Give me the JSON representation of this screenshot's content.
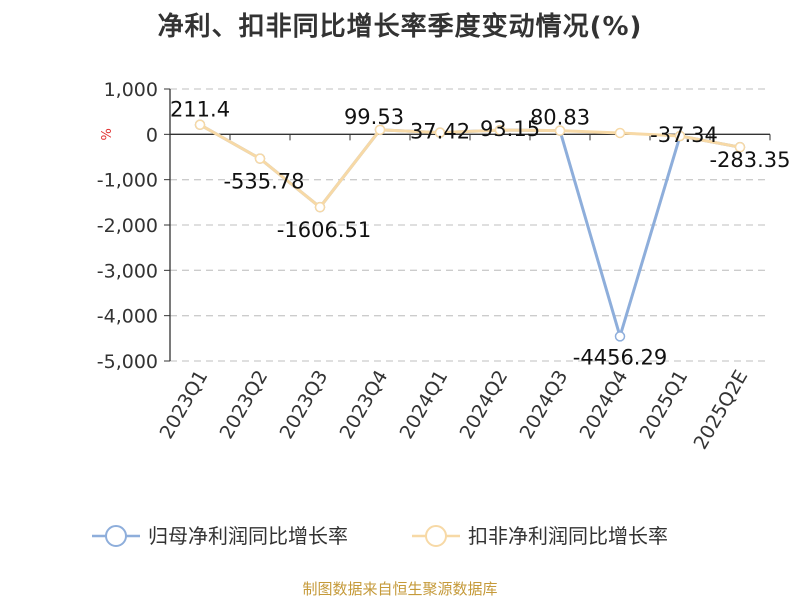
{
  "title": "净利、扣非同比增长率季度变动情况(%)",
  "source": "制图数据来自恒生聚源数据库",
  "colors": {
    "series1": "#8eaedb",
    "series2": "#f7d9a6",
    "axis": "#333333",
    "grid": "#cccccc",
    "unit": "#e03030"
  },
  "chart_data": {
    "type": "line",
    "categories": [
      "2023Q1",
      "2023Q2",
      "2023Q3",
      "2023Q4",
      "2024Q1",
      "2024Q2",
      "2024Q3",
      "2024Q4",
      "2025Q1",
      "2025Q2E"
    ],
    "ylim": [
      -5000,
      1000
    ],
    "yticks": [
      1000,
      0,
      -1000,
      -2000,
      -3000,
      -4000,
      -5000
    ],
    "ytick_labels": [
      "1,000",
      "0",
      "-1,000",
      "-2,000",
      "-3,000",
      "-4,000",
      "-5,000"
    ],
    "ylabel": "%",
    "grid": true,
    "legend_position": "bottom",
    "series": [
      {
        "name": "归母净利润同比增长率",
        "values": [
          211.4,
          -535.78,
          -1606.51,
          99.53,
          37.42,
          93.15,
          80.83,
          -4456.29,
          -37.34,
          -283.35
        ]
      },
      {
        "name": "扣非净利润同比增长率",
        "values": [
          211.4,
          -535.78,
          -1606.51,
          99.53,
          37.42,
          93.15,
          80.83,
          30,
          -37.34,
          -283.35
        ]
      }
    ],
    "data_labels": [
      "211.4",
      "-535.78",
      "-1606.51",
      "99.53",
      "37.42",
      "93.15",
      "80.83",
      "-4456.29",
      "-37.34",
      "-283.35"
    ]
  }
}
